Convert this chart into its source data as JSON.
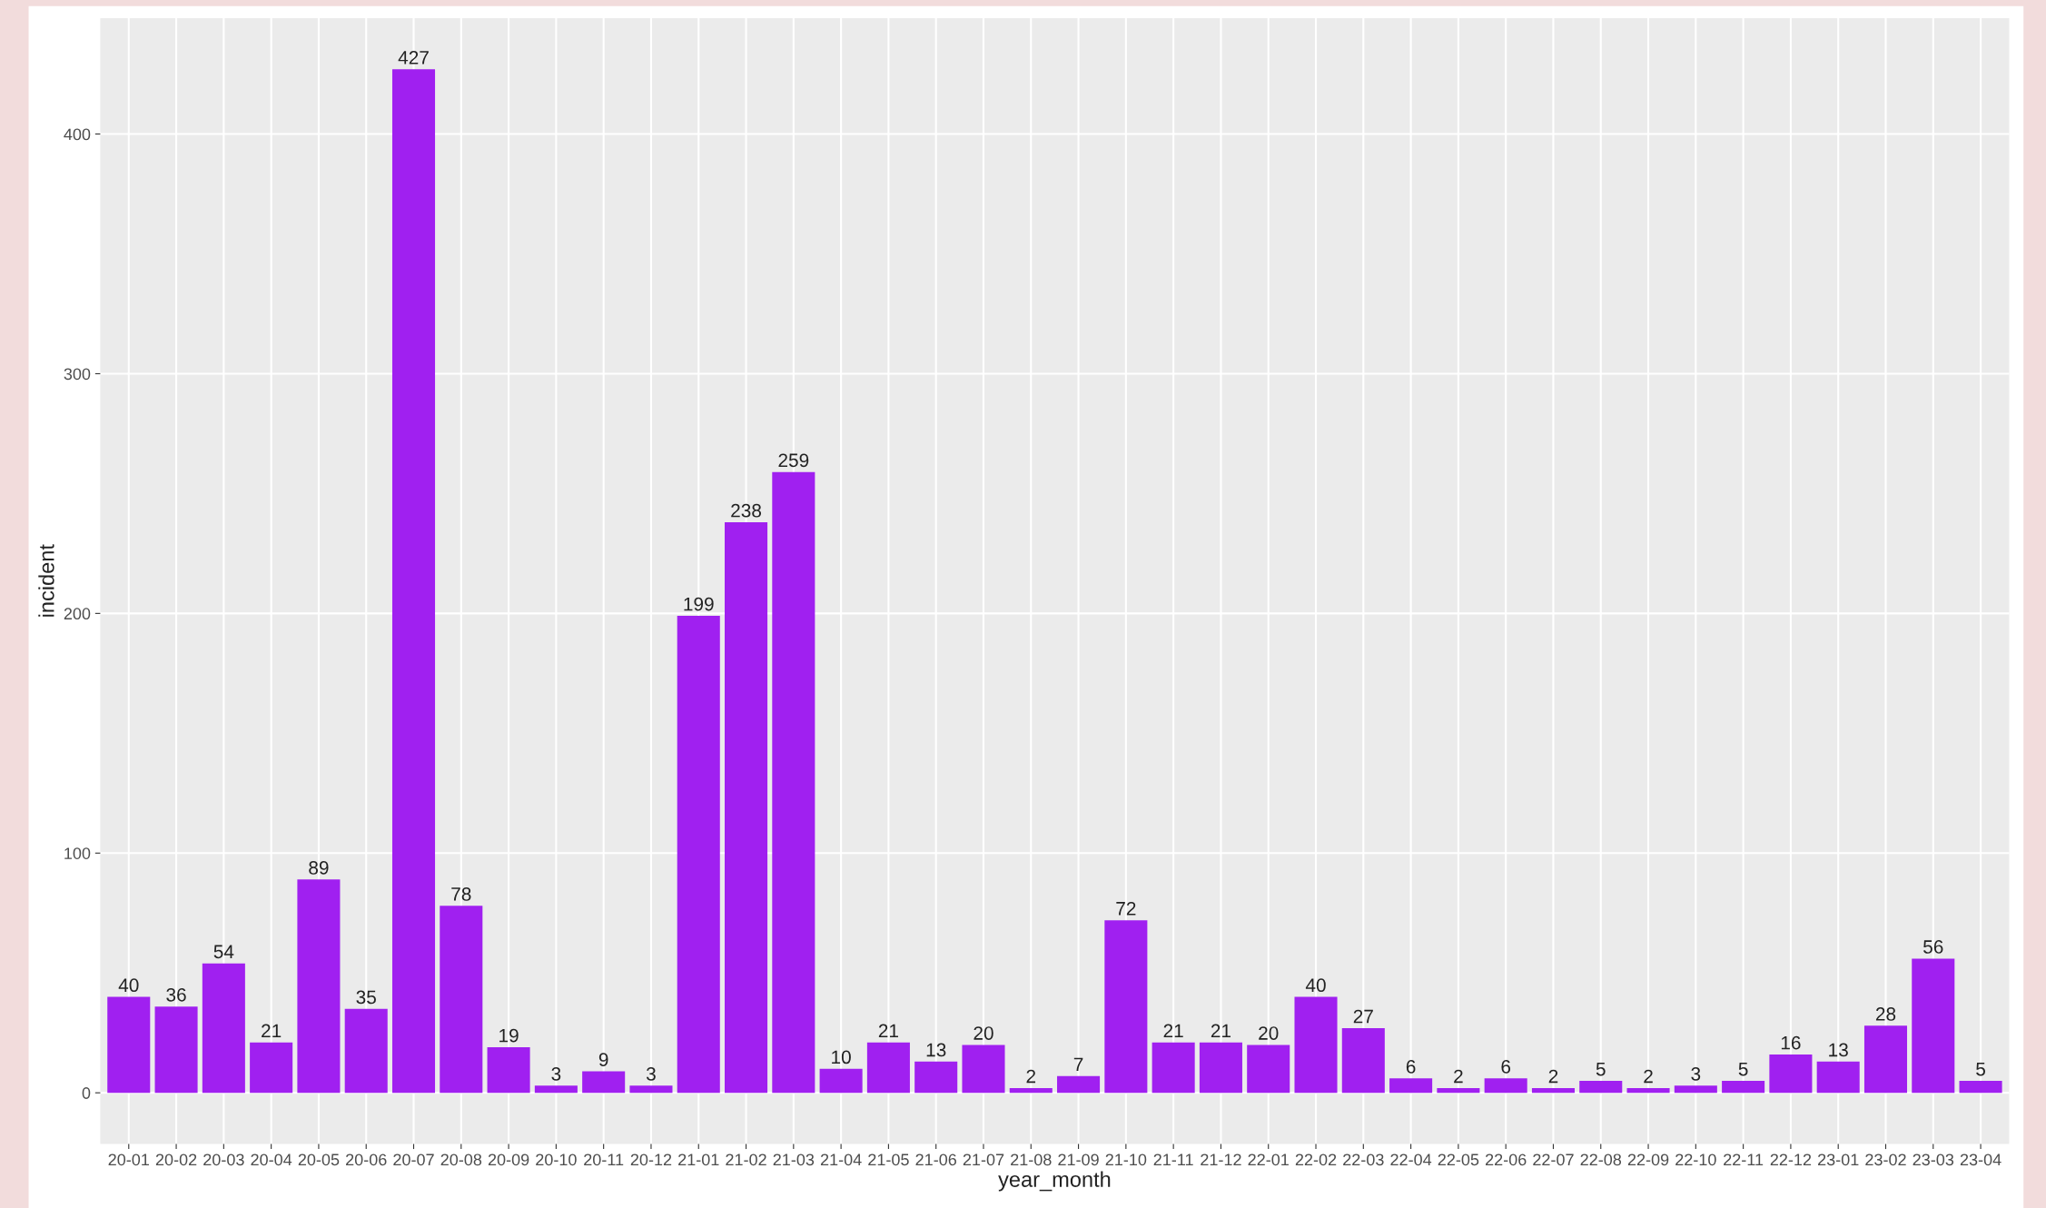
{
  "chart_data": {
    "type": "bar",
    "xlabel": "year_month",
    "ylabel": "incident",
    "categories": [
      "20-01",
      "20-02",
      "20-03",
      "20-04",
      "20-05",
      "20-06",
      "20-07",
      "20-08",
      "20-09",
      "20-10",
      "20-11",
      "20-12",
      "21-01",
      "21-02",
      "21-03",
      "21-04",
      "21-05",
      "21-06",
      "21-07",
      "21-08",
      "21-09",
      "21-10",
      "21-11",
      "21-12",
      "22-01",
      "22-02",
      "22-03",
      "22-04",
      "22-05",
      "22-06",
      "22-07",
      "22-08",
      "22-09",
      "22-10",
      "22-11",
      "22-12",
      "23-01",
      "23-02",
      "23-03",
      "23-04"
    ],
    "values": [
      40,
      36,
      54,
      21,
      89,
      35,
      427,
      78,
      19,
      3,
      9,
      3,
      199,
      238,
      259,
      10,
      21,
      13,
      20,
      2,
      7,
      72,
      21,
      21,
      20,
      40,
      27,
      6,
      2,
      6,
      2,
      5,
      2,
      3,
      5,
      16,
      13,
      28,
      56,
      5
    ],
    "color": "#a020f0",
    "ylim": [
      -21.35,
      448.35
    ],
    "yticks": [
      0,
      100,
      200,
      300,
      400
    ],
    "grid": true,
    "data_labels": true
  }
}
